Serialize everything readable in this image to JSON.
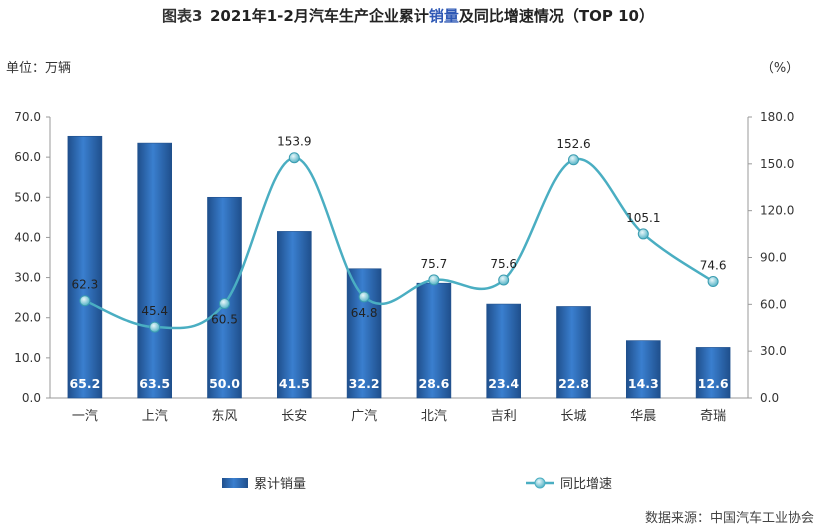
{
  "figure_label": "图表3",
  "title_pre": "2021年1-2月汽车生产企业累计",
  "title_highlight": "销量",
  "title_post": "及同比增速情况（TOP 10）",
  "unit_left": "单位：万辆",
  "unit_right": "（%）",
  "source": "数据来源：中国汽车工业协会",
  "colors": {
    "bar": "#2e6db8",
    "bar_dark": "#1f4f8c",
    "line": "#4aaec2",
    "highlight": "#2e58b5",
    "axis": "#999999"
  },
  "chart_data": {
    "type": "bar+line",
    "categories": [
      "一汽",
      "上汽",
      "东风",
      "长安",
      "广汽",
      "北汽",
      "吉利",
      "长城",
      "华晨",
      "奇瑞"
    ],
    "series": [
      {
        "name": "累计销量",
        "type": "bar",
        "axis": "left",
        "values": [
          65.2,
          63.5,
          50.0,
          41.5,
          32.2,
          28.6,
          23.4,
          22.8,
          14.3,
          12.6
        ]
      },
      {
        "name": "同比增速",
        "type": "line",
        "axis": "right",
        "values": [
          62.3,
          45.4,
          60.5,
          153.9,
          64.8,
          75.7,
          75.6,
          152.6,
          105.1,
          74.6
        ]
      }
    ],
    "bar_labels": [
      "65.2",
      "63.5",
      "50.0",
      "41.5",
      "32.2",
      "28.6",
      "23.4",
      "22.8",
      "14.3",
      "12.6"
    ],
    "line_labels": [
      "62.3",
      "45.4",
      "60.5",
      "153.9",
      "64.8",
      "75.7",
      "75.6",
      "152.6",
      "105.1",
      "74.6"
    ],
    "y_left": {
      "min": 0,
      "max": 70,
      "step": 10,
      "ticks": [
        "0.0",
        "10.0",
        "20.0",
        "30.0",
        "40.0",
        "50.0",
        "60.0",
        "70.0"
      ]
    },
    "y_right": {
      "min": 0,
      "max": 180,
      "step": 30,
      "ticks": [
        "0.0",
        "30.0",
        "60.0",
        "90.0",
        "120.0",
        "150.0",
        "180.0"
      ]
    },
    "grid": false,
    "legend": "bottom"
  }
}
